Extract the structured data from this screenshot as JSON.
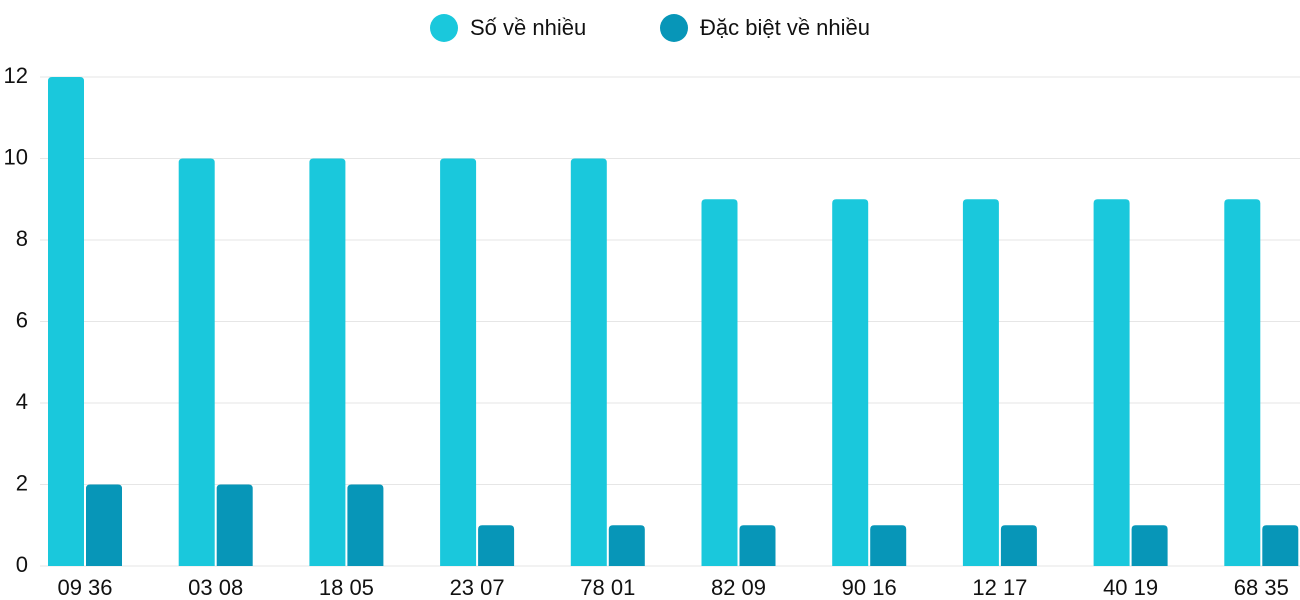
{
  "chart_data": {
    "type": "grouped-bar",
    "categories": [
      "09 36",
      "03 08",
      "18 05",
      "23 07",
      "78 01",
      "82 09",
      "90 16",
      "12 17",
      "40 19",
      "68 35"
    ],
    "series": [
      {
        "name": "Số về nhiều",
        "color": "#1ac8dc",
        "values": [
          12,
          10,
          10,
          10,
          10,
          9,
          9,
          9,
          9,
          9
        ]
      },
      {
        "name": "Đặc biệt về nhiều",
        "color": "#0796b8",
        "values": [
          2,
          2,
          2,
          1,
          1,
          1,
          1,
          1,
          1,
          1
        ]
      }
    ],
    "ylim": [
      0,
      12
    ],
    "yticks": [
      0,
      2,
      4,
      6,
      8,
      10,
      12
    ],
    "grid": true,
    "legend": "top"
  }
}
